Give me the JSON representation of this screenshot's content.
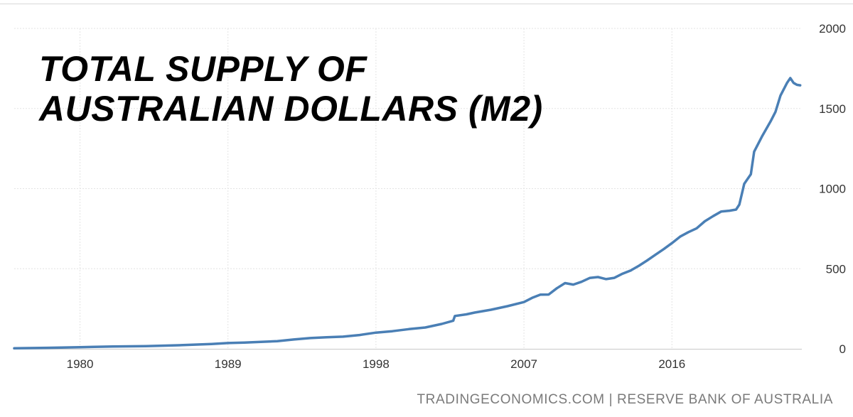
{
  "title_lines": [
    "TOTAL SUPPLY OF",
    "AUSTRALIAN DOLLARS (M2)"
  ],
  "source": "TRADINGECONOMICS.COM | RESERVE BANK OF AUSTRALIA",
  "colors": {
    "line": "#4a7fb5",
    "grid": "#e3e3e3",
    "text": "#333333",
    "source": "#7a7a7a"
  },
  "chart_data": {
    "type": "line",
    "title": "TOTAL SUPPLY OF AUSTRALIAN DOLLARS (M2)",
    "xlabel": "",
    "ylabel": "",
    "xlim": [
      1976.0,
      2023.9
    ],
    "ylim": [
      0,
      2000
    ],
    "x_ticks": [
      1980,
      1989,
      1998,
      2007,
      2016
    ],
    "y_ticks": [
      0,
      500,
      1000,
      1500,
      2000
    ],
    "grid": true,
    "legend": "none",
    "series": [
      {
        "x": [
          1976.0,
          1978.0,
          1980.0,
          1982.0,
          1984.0,
          1986.0,
          1988.0,
          1989.0,
          1990.0,
          1991.0,
          1992.0,
          1993.0,
          1994.0,
          1995.0,
          1996.0,
          1997.0,
          1998.0,
          1999.0,
          2000.0,
          2001.0,
          2002.0,
          2002.7,
          2002.8,
          2003.5,
          2004.0,
          2005.0,
          2006.0,
          2007.0,
          2007.5,
          2008.0,
          2008.5,
          2009.0,
          2009.5,
          2010.0,
          2010.5,
          2011.0,
          2011.5,
          2012.0,
          2012.5,
          2013.0,
          2013.5,
          2014.0,
          2014.5,
          2015.0,
          2015.5,
          2016.0,
          2016.5,
          2017.0,
          2017.5,
          2018.0,
          2018.5,
          2019.0,
          2019.5,
          2019.9,
          2020.1,
          2020.4,
          2020.8,
          2021.0,
          2021.5,
          2022.0,
          2022.3,
          2022.6,
          2023.0,
          2023.2,
          2023.4,
          2023.6,
          2023.8
        ],
        "values": [
          3,
          6,
          10,
          14,
          17,
          22,
          30,
          36,
          39,
          43,
          48,
          58,
          67,
          72,
          76,
          86,
          101,
          110,
          123,
          133,
          155,
          175,
          205,
          215,
          226,
          244,
          266,
          292,
          318,
          338,
          339,
          378,
          410,
          401,
          418,
          442,
          448,
          435,
          443,
          469,
          489,
          519,
          552,
          587,
          622,
          660,
          700,
          728,
          752,
          796,
          828,
          857,
          862,
          869,
          900,
          1030,
          1090,
          1230,
          1330,
          1420,
          1480,
          1580,
          1660,
          1690,
          1660,
          1648,
          1645
        ]
      }
    ]
  }
}
